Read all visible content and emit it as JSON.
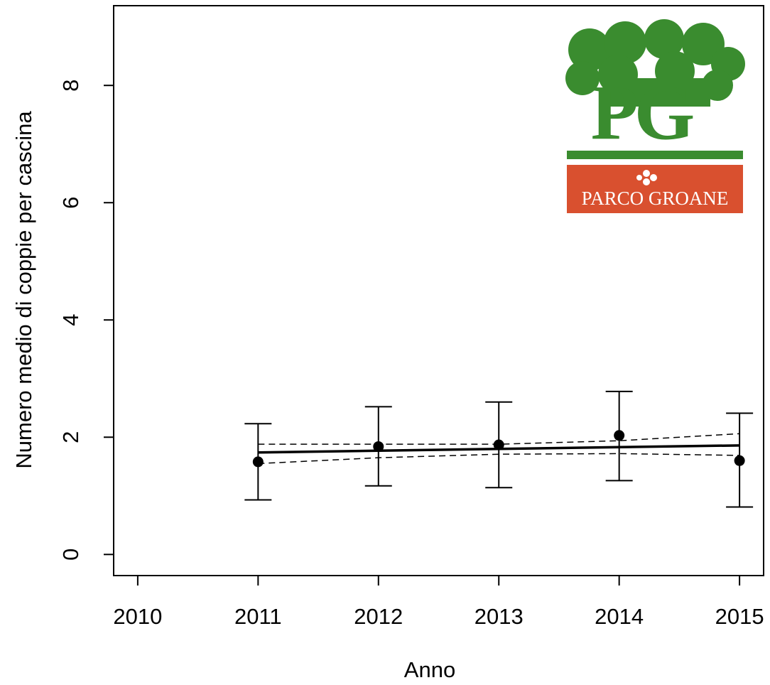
{
  "chart_data": {
    "type": "line",
    "x_label": "Anno",
    "y_label": "Numero medio di coppie per cascina",
    "x": [
      2011,
      2012,
      2013,
      2014,
      2015
    ],
    "means": [
      1.58,
      1.84,
      1.87,
      2.03,
      1.6
    ],
    "ci_lower": [
      0.93,
      1.17,
      1.14,
      1.26,
      0.81
    ],
    "ci_upper": [
      2.23,
      2.52,
      2.6,
      2.78,
      2.41
    ],
    "trend": [
      1.74,
      1.77,
      1.8,
      1.83,
      1.86
    ],
    "trend_lower": [
      1.55,
      1.65,
      1.71,
      1.72,
      1.69
    ],
    "trend_upper": [
      1.88,
      1.88,
      1.88,
      1.94,
      2.06
    ],
    "color": "#000000",
    "xlim": [
      2009.8,
      2015.2
    ],
    "xticks": [
      2010,
      2011,
      2012,
      2013,
      2014,
      2015
    ],
    "ylim": [
      -0.36,
      9.36
    ],
    "yticks": [
      0,
      2,
      4,
      6,
      8
    ],
    "logo": {
      "letters": "PG",
      "name": "PARCO GROANE"
    }
  }
}
